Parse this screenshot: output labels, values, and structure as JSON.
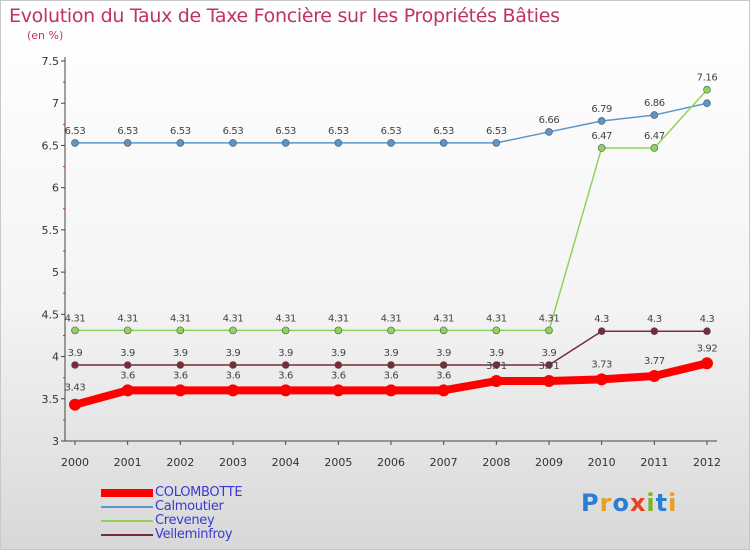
{
  "title": "Evolution du Taux de Taxe Foncière sur les Propriétés Bâties",
  "unit": "(en %)",
  "logo": {
    "text": "Proxiti",
    "colors": [
      "#2a7fd4",
      "#e8a020",
      "#2a7fd4",
      "#e84020",
      "#7ab520",
      "#2a7fd4",
      "#e8a020"
    ]
  },
  "chart_data": {
    "type": "line",
    "title": "Evolution du Taux de Taxe Foncière sur les Propriétés Bâties",
    "ylabel": "(en %)",
    "xlabel": "",
    "ylim": [
      3,
      7.5
    ],
    "yticks": [
      "3",
      "3.5",
      "4",
      "4.5",
      "5",
      "5.5",
      "6",
      "6.5",
      "7",
      "7.5"
    ],
    "x": [
      "2000",
      "2001",
      "2002",
      "2003",
      "2004",
      "2005",
      "2006",
      "2007",
      "2008",
      "2009",
      "2010",
      "2011",
      "2012"
    ],
    "series": [
      {
        "name": "Calmoutier",
        "color": "#5b95c9",
        "values": [
          6.53,
          6.53,
          6.53,
          6.53,
          6.53,
          6.53,
          6.53,
          6.53,
          6.53,
          6.66,
          6.79,
          6.86,
          7.0
        ],
        "labels": [
          "6.53",
          "6.53",
          "6.53",
          "6.53",
          "6.53",
          "6.53",
          "6.53",
          "6.53",
          "6.53",
          "6.66",
          "6.79",
          "6.86",
          ""
        ]
      },
      {
        "name": "Creveney",
        "color": "#8fd45a",
        "values": [
          4.31,
          4.31,
          4.31,
          4.31,
          4.31,
          4.31,
          4.31,
          4.31,
          4.31,
          4.31,
          6.47,
          6.47,
          7.16
        ],
        "labels": [
          "4.31",
          "4.31",
          "4.31",
          "4.31",
          "4.31",
          "4.31",
          "4.31",
          "4.31",
          "4.31",
          "4.31",
          "6.47",
          "6.47",
          "7.16"
        ]
      },
      {
        "name": "Velleminfroy",
        "color": "#7a2a38",
        "values": [
          3.9,
          3.9,
          3.9,
          3.9,
          3.9,
          3.9,
          3.9,
          3.9,
          3.9,
          3.9,
          4.3,
          4.3,
          4.3
        ],
        "labels": [
          "3.9",
          "3.9",
          "3.9",
          "3.9",
          "3.9",
          "3.9",
          "3.9",
          "3.9",
          "3.9",
          "3.9",
          "4.3",
          "4.3",
          "4.3"
        ]
      },
      {
        "name": "COLOMBOTTE",
        "color": "#ff0000",
        "values": [
          3.43,
          3.6,
          3.6,
          3.6,
          3.6,
          3.6,
          3.6,
          3.6,
          3.71,
          3.71,
          3.73,
          3.77,
          3.92
        ],
        "labels": [
          "3.43",
          "3.6",
          "3.6",
          "3.6",
          "3.6",
          "3.6",
          "3.6",
          "3.6",
          "3.71",
          "3.71",
          "3.73",
          "3.77",
          "3.92"
        ]
      }
    ],
    "legend": [
      {
        "name": "COLOMBOTTE",
        "color": "#ff0000"
      },
      {
        "name": "Calmoutier",
        "color": "#5b95c9"
      },
      {
        "name": "Creveney",
        "color": "#8fd45a"
      },
      {
        "name": "Velleminfroy",
        "color": "#7a2a38"
      }
    ]
  }
}
